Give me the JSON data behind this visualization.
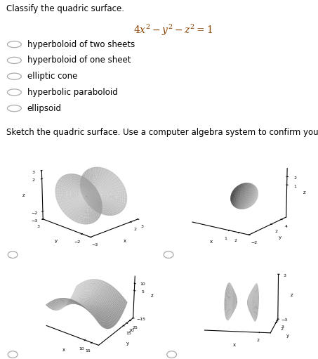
{
  "title_text": "Classify the quadric surface.",
  "equation": "$4x^2 - y^2 - z^2 = 1$",
  "options": [
    "hyperboloid of two sheets",
    "hyperboloid of one sheet",
    "elliptic cone",
    "hyperbolic paraboloid",
    "ellipsoid"
  ],
  "sketch_prompt": "Sketch the quadric surface. Use a computer algebra system to confirm your sketch.",
  "bg_color": "#ffffff",
  "text_color": "#000000",
  "surface_color": "#c8c8c8",
  "surface_alpha": 0.85,
  "font_size_body": 8.5,
  "font_size_eq": 10,
  "radio_color": "#aaaaaa",
  "plot1_elev": 18,
  "plot1_azim": -135,
  "plot2_elev": 15,
  "plot2_azim": -55,
  "plot3_elev": 28,
  "plot3_azim": -55,
  "plot4_elev": 10,
  "plot4_azim": -80
}
